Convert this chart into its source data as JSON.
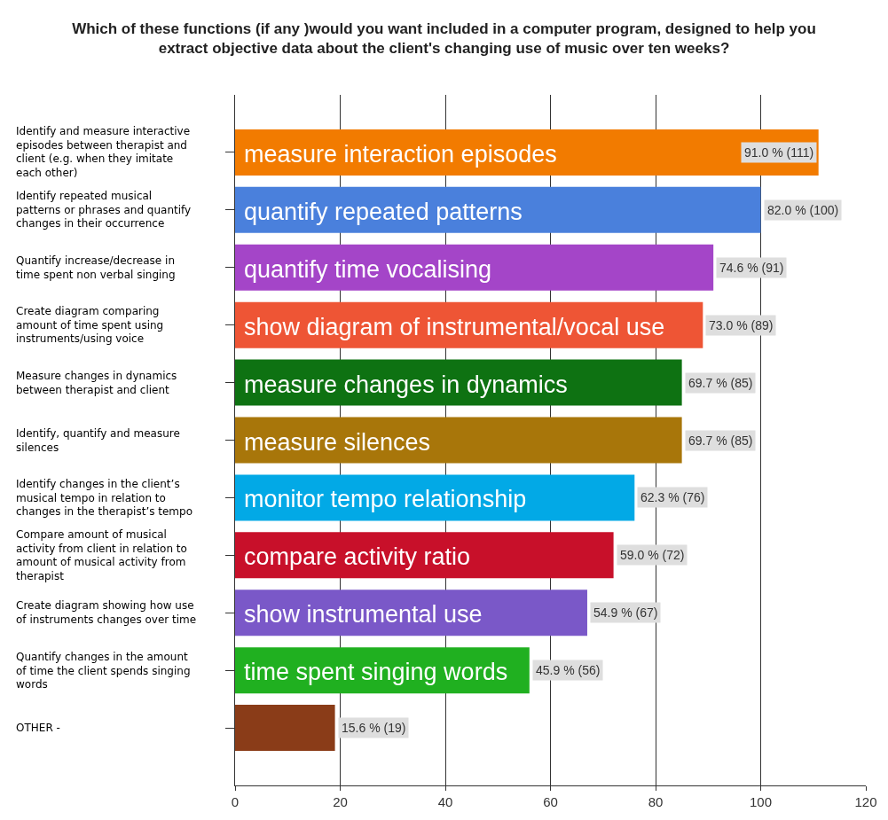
{
  "chart_data": {
    "type": "bar",
    "orientation": "horizontal",
    "title": "Which of these functions (if any )would you want included in a computer program, designed to help you\nextract objective data about the client's changing use of music over ten weeks?",
    "categories": [
      "Identify and measure interactive\nepisodes between therapist and\nclient (e.g. when they imitate\neach other)",
      "Identify repeated musical\npatterns or phrases and quantify\nchanges in their occurrence",
      "Quantify increase/decrease in\ntime spent non verbal singing",
      "Create diagram comparing\namount of time spent using\ninstruments/using voice",
      "Measure changes in dynamics\nbetween therapist and client",
      "Identify, quantify and measure\nsilences",
      "Identify changes in the client’s\nmusical tempo in relation to\nchanges in the therapist’s tempo",
      "Compare amount of musical\nactivity from client in relation to\namount of musical activity from\ntherapist",
      "Create diagram showing how use\nof instruments changes over time",
      "Quantify changes in the amount\nof time the client spends singing\nwords",
      "OTHER -"
    ],
    "values": [
      111,
      100,
      91,
      89,
      85,
      85,
      76,
      72,
      67,
      56,
      19
    ],
    "colors": [
      "#f27b00",
      "#4a80dc",
      "#a445c8",
      "#ee5535",
      "#0e7212",
      "#a8760a",
      "#02a9e6",
      "#c8102a",
      "#7a58c8",
      "#20b020",
      "#8a3c18"
    ],
    "value_labels": [
      "91.0 % (111)",
      "82.0 % (100)",
      "74.6 % (91)",
      "73.0 % (89)",
      "69.7 % (85)",
      "69.7 % (85)",
      "62.3 % (76)",
      "59.0 % (72)",
      "54.9 % (67)",
      "45.9 % (56)",
      "15.6 % (19)"
    ],
    "annotations": [
      {
        "text": "measure interaction episodes",
        "y": "Identify and measure interactive\nepisodes between therapist and\nclient (e.g. when they imitate\neach other)"
      },
      {
        "text": "quantify repeated patterns",
        "y": "Identify repeated musical\npatterns or phrases and quantify\nchanges in their occurrence"
      },
      {
        "text": "quantify time vocalising",
        "y": "Quantify increase/decrease in\ntime spent non verbal singing"
      },
      {
        "text": "show diagram of instrumental/vocal use",
        "y": "Create diagram comparing\namount of time spent using\ninstruments/using voice"
      },
      {
        "text": "measure changes in dynamics",
        "y": "Measure changes in dynamics\nbetween therapist and client"
      },
      {
        "text": "measure silences",
        "y": "Identify, quantify and measure\nsilences"
      },
      {
        "text": "monitor tempo relationship",
        "y": "Identify changes in the client’s\nmusical tempo in relation to\nchanges in the therapist’s tempo"
      },
      {
        "text": "compare activity ratio",
        "y": "Compare amount of musical\nactivity from client in relation to\namount of musical activity from\ntherapist"
      },
      {
        "text": "show instrumental use",
        "y": "Create diagram showing how use\nof instruments changes over time"
      },
      {
        "text": "time spent singing words",
        "y": "Quantify changes in the amount\nof time the client spends singing\nwords"
      }
    ],
    "xlim": [
      0,
      120
    ],
    "xticks": [
      0,
      20,
      40,
      60,
      80,
      100,
      120
    ],
    "grid": "x"
  }
}
